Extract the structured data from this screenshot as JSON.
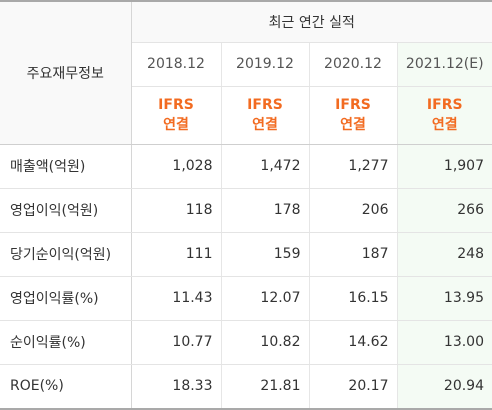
{
  "table": {
    "row_header_title": "주요재무정보",
    "section_title": "최근 연간 실적",
    "periods": [
      {
        "year": "2018.12",
        "basis_line1": "IFRS",
        "basis_line2": "연결"
      },
      {
        "year": "2019.12",
        "basis_line1": "IFRS",
        "basis_line2": "연결"
      },
      {
        "year": "2020.12",
        "basis_line1": "IFRS",
        "basis_line2": "연결"
      },
      {
        "year": "2021.12(E)",
        "basis_line1": "IFRS",
        "basis_line2": "연결"
      }
    ],
    "rows": [
      {
        "label": "매출액(억원)",
        "values": [
          "1,028",
          "1,472",
          "1,277",
          "1,907"
        ]
      },
      {
        "label": "영업이익(억원)",
        "values": [
          "118",
          "178",
          "206",
          "266"
        ]
      },
      {
        "label": "당기순이익(억원)",
        "values": [
          "111",
          "159",
          "187",
          "248"
        ]
      },
      {
        "label": "영업이익률(%)",
        "values": [
          "11.43",
          "12.07",
          "16.15",
          "13.95"
        ]
      },
      {
        "label": "순이익률(%)",
        "values": [
          "10.77",
          "10.82",
          "14.62",
          "13.00"
        ]
      },
      {
        "label": "ROE(%)",
        "values": [
          "18.33",
          "21.81",
          "20.17",
          "20.94"
        ]
      }
    ]
  },
  "colors": {
    "accent": "#f26b21",
    "estimate_bg": "#f4fbf4",
    "header_bg": "#f9f9f9"
  }
}
